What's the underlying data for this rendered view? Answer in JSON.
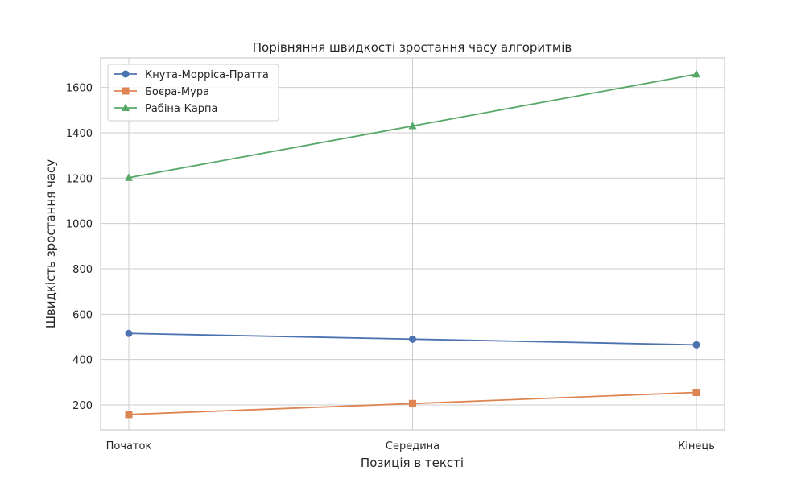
{
  "chart_data": {
    "type": "line",
    "title": "Порівняння швидкості зростання часу алгоритмів",
    "xlabel": "Позиція в тексті",
    "ylabel": "Швидкість зростання часу",
    "categories": [
      "Початок",
      "Середина",
      "Кінець"
    ],
    "ylim": [
      90,
      1730
    ],
    "yticks": [
      200,
      400,
      600,
      800,
      1000,
      1200,
      1400,
      1600
    ],
    "grid": true,
    "legend_position": "top-left",
    "series": [
      {
        "name": "Кнута-Морріса-Пратта",
        "values": [
          515,
          490,
          465
        ],
        "color": "#4c72b0",
        "marker": "circle"
      },
      {
        "name": "Боєра-Мура",
        "values": [
          158,
          206,
          255
        ],
        "color": "#dd8452",
        "marker": "square"
      },
      {
        "name": "Рабіна-Карпа",
        "values": [
          1202,
          1430,
          1658
        ],
        "color": "#55a868",
        "marker": "triangle"
      }
    ]
  }
}
